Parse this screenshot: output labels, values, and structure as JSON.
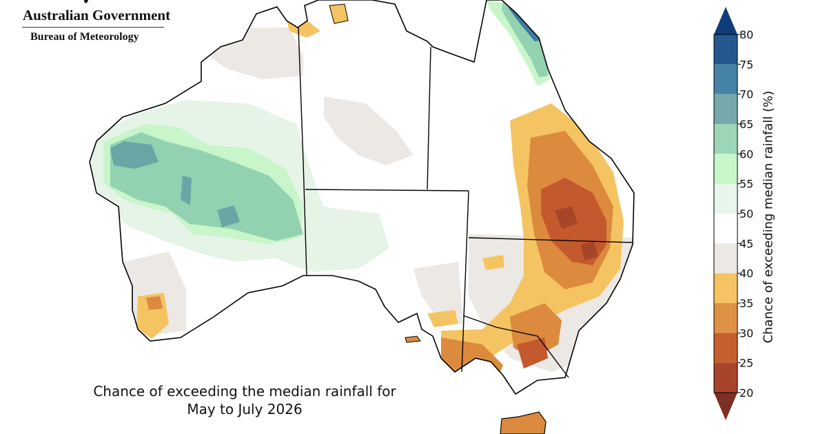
{
  "logo": {
    "crest_glyph": "❦",
    "line1": "Australian Government",
    "line2": "Bureau of Meteorology"
  },
  "map": {
    "title_line1": "Chance of exceeding the median rainfall for",
    "title_line2": "May to July 2026",
    "colors": {
      "c20_25": "#a5452a",
      "c25_30": "#c4592d",
      "c30_35": "#dc8a3e",
      "c35_40": "#f5c462",
      "c40_45": "#ece8e4",
      "c45_55": "#ffffff",
      "c55_60": "#e6f4e8",
      "c60_65": "#c8f5c9",
      "c65_70": "#93d2b0",
      "c70_75": "#6aa6a6",
      "c75_80": "#3d7ba3",
      "c80plus": "#1f4e8c",
      "outline": "#000000"
    }
  },
  "colorbar": {
    "label": "Chance of exceeding median rainfall (%)",
    "ticks": [
      "80",
      "75",
      "70",
      "65",
      "60",
      "55",
      "50",
      "45",
      "40",
      "35",
      "30",
      "25",
      "20"
    ],
    "bands": [
      {
        "from": 75,
        "to": 80,
        "color": "#24588f"
      },
      {
        "from": 70,
        "to": 75,
        "color": "#4681a6"
      },
      {
        "from": 65,
        "to": 70,
        "color": "#75a9ab"
      },
      {
        "from": 60,
        "to": 65,
        "color": "#9dd6b6"
      },
      {
        "from": 55,
        "to": 60,
        "color": "#c7f7c8"
      },
      {
        "from": 50,
        "to": 55,
        "color": "#e8f5ea"
      },
      {
        "from": 45,
        "to": 50,
        "color": "#ffffff"
      },
      {
        "from": 40,
        "to": 45,
        "color": "#ece8e4"
      },
      {
        "from": 35,
        "to": 40,
        "color": "#f6c364"
      },
      {
        "from": 30,
        "to": 35,
        "color": "#df9243"
      },
      {
        "from": 25,
        "to": 30,
        "color": "#c65e2e"
      },
      {
        "from": 20,
        "to": 25,
        "color": "#a8442b"
      }
    ],
    "top_arrow_color": "#0f3d78",
    "bottom_arrow_color": "#7e2e22"
  }
}
